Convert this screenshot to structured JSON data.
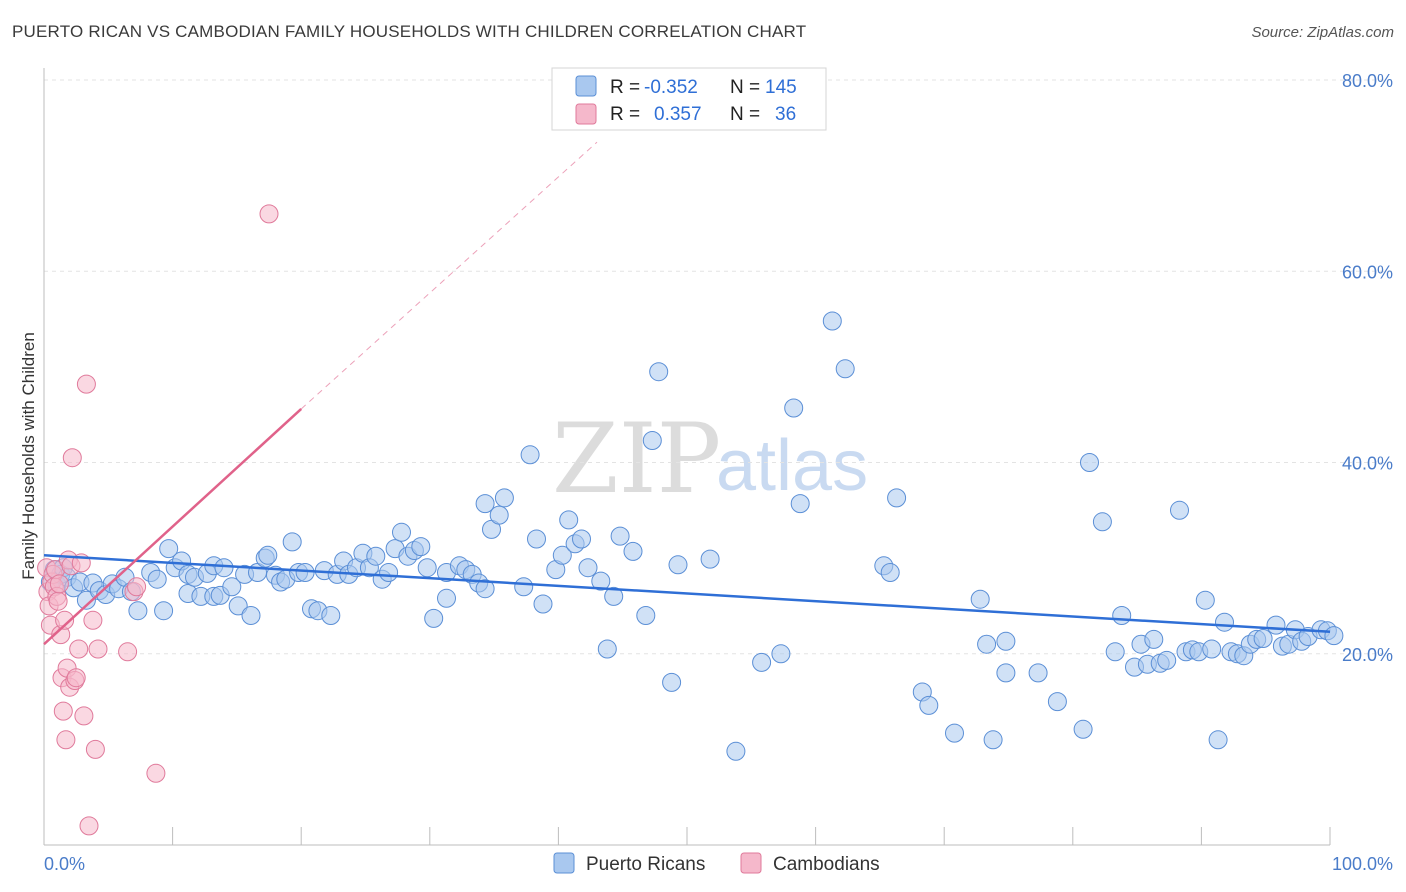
{
  "title": "PUERTO RICAN VS CAMBODIAN FAMILY HOUSEHOLDS WITH CHILDREN CORRELATION CHART",
  "source": "Source: ZipAtlas.com",
  "watermark": {
    "zip": "ZIP",
    "atlas": "atlas"
  },
  "colors": {
    "blue_fill": "#a9c8ef",
    "blue_stroke": "#5b8fd6",
    "blue_line": "#2f6fd6",
    "pink_fill": "#f5b8cb",
    "pink_stroke": "#e07a9b",
    "pink_line": "#e0628a",
    "tick_text": "#4a7cc9",
    "grid": "#e3e3e3"
  },
  "legend": {
    "rows": [
      {
        "r_label": "R =",
        "r_value": "-0.352",
        "n_label": "N =",
        "n_value": "145"
      },
      {
        "r_label": "R =",
        "r_value": "0.357",
        "n_label": "N =",
        "n_value": "36"
      }
    ]
  },
  "bottom_legend": [
    "Puerto Ricans",
    "Cambodians"
  ],
  "chart_data": {
    "type": "scatter",
    "title": "PUERTO RICAN VS CAMBODIAN FAMILY HOUSEHOLDS WITH CHILDREN CORRELATION CHART",
    "xlabel": "",
    "ylabel": "Family Households with Children",
    "xlim": [
      0,
      100
    ],
    "ylim": [
      0,
      80
    ],
    "x_tick_labels": [
      "0.0%",
      "100.0%"
    ],
    "y_ticks": [
      20,
      40,
      60,
      80
    ],
    "y_tick_labels": [
      "20.0%",
      "40.0%",
      "60.0%",
      "80.0%"
    ],
    "grid": "horizontal dashed",
    "legend_placement": "top-center",
    "series": [
      {
        "name": "Puerto Ricans",
        "color": "#a9c8ef",
        "trend": {
          "x": [
            0,
            100
          ],
          "y": [
            30.3,
            22.3
          ]
        },
        "points": [
          [
            0.5,
            27.5
          ],
          [
            0.8,
            28.8
          ],
          [
            1.0,
            27.2
          ],
          [
            1.3,
            28.3
          ],
          [
            1.5,
            29.0
          ],
          [
            1.8,
            28.0
          ],
          [
            2.3,
            26.9
          ],
          [
            2.8,
            27.5
          ],
          [
            3.3,
            25.6
          ],
          [
            3.8,
            27.4
          ],
          [
            4.3,
            26.6
          ],
          [
            4.8,
            26.2
          ],
          [
            5.3,
            27.3
          ],
          [
            5.8,
            26.8
          ],
          [
            6.3,
            28.0
          ],
          [
            6.8,
            26.5
          ],
          [
            7.3,
            24.5
          ],
          [
            8.3,
            28.5
          ],
          [
            8.8,
            27.8
          ],
          [
            9.3,
            24.5
          ],
          [
            9.7,
            31.0
          ],
          [
            10.2,
            29.0
          ],
          [
            10.7,
            29.7
          ],
          [
            11.2,
            28.3
          ],
          [
            11.2,
            26.3
          ],
          [
            11.7,
            28.0
          ],
          [
            12.2,
            26.0
          ],
          [
            12.7,
            28.4
          ],
          [
            13.2,
            26.0
          ],
          [
            13.2,
            29.2
          ],
          [
            13.7,
            26.1
          ],
          [
            14.0,
            29.0
          ],
          [
            14.6,
            27.0
          ],
          [
            15.1,
            25.0
          ],
          [
            15.6,
            28.3
          ],
          [
            16.1,
            24.0
          ],
          [
            16.6,
            28.5
          ],
          [
            17.2,
            30.0
          ],
          [
            17.4,
            30.3
          ],
          [
            18.0,
            28.2
          ],
          [
            18.4,
            27.5
          ],
          [
            18.8,
            27.8
          ],
          [
            19.3,
            31.7
          ],
          [
            19.8,
            28.5
          ],
          [
            20.3,
            28.5
          ],
          [
            20.8,
            24.7
          ],
          [
            21.3,
            24.5
          ],
          [
            21.8,
            28.7
          ],
          [
            22.3,
            24.0
          ],
          [
            22.8,
            28.3
          ],
          [
            23.3,
            29.7
          ],
          [
            23.7,
            28.3
          ],
          [
            24.3,
            29.0
          ],
          [
            24.8,
            30.5
          ],
          [
            25.3,
            29.0
          ],
          [
            25.8,
            30.2
          ],
          [
            26.3,
            27.8
          ],
          [
            26.8,
            28.5
          ],
          [
            27.3,
            31.0
          ],
          [
            27.8,
            32.7
          ],
          [
            28.3,
            30.2
          ],
          [
            28.8,
            30.8
          ],
          [
            29.3,
            31.2
          ],
          [
            29.8,
            29.0
          ],
          [
            30.3,
            23.7
          ],
          [
            31.3,
            28.5
          ],
          [
            31.3,
            25.8
          ],
          [
            32.3,
            29.2
          ],
          [
            32.8,
            28.8
          ],
          [
            33.3,
            28.3
          ],
          [
            33.8,
            27.4
          ],
          [
            34.3,
            26.8
          ],
          [
            34.3,
            35.7
          ],
          [
            34.8,
            33.0
          ],
          [
            35.4,
            34.5
          ],
          [
            35.8,
            36.3
          ],
          [
            37.3,
            27.0
          ],
          [
            37.8,
            40.8
          ],
          [
            38.3,
            32.0
          ],
          [
            38.8,
            25.2
          ],
          [
            39.8,
            28.8
          ],
          [
            40.3,
            30.3
          ],
          [
            40.8,
            34.0
          ],
          [
            41.3,
            31.5
          ],
          [
            41.8,
            32.0
          ],
          [
            42.3,
            29.0
          ],
          [
            43.3,
            27.6
          ],
          [
            43.8,
            20.5
          ],
          [
            44.3,
            26.0
          ],
          [
            44.8,
            32.3
          ],
          [
            45.8,
            30.7
          ],
          [
            46.8,
            24.0
          ],
          [
            47.3,
            42.3
          ],
          [
            47.8,
            49.5
          ],
          [
            48.8,
            17.0
          ],
          [
            49.3,
            29.3
          ],
          [
            51.8,
            29.9
          ],
          [
            53.8,
            9.8
          ],
          [
            55.8,
            19.1
          ],
          [
            57.3,
            20.0
          ],
          [
            58.3,
            45.7
          ],
          [
            58.8,
            35.7
          ],
          [
            61.3,
            54.8
          ],
          [
            62.3,
            49.8
          ],
          [
            65.3,
            29.2
          ],
          [
            65.8,
            28.5
          ],
          [
            66.3,
            36.3
          ],
          [
            68.3,
            16.0
          ],
          [
            68.8,
            14.6
          ],
          [
            70.8,
            11.7
          ],
          [
            72.8,
            25.7
          ],
          [
            73.3,
            21.0
          ],
          [
            73.8,
            11.0
          ],
          [
            74.8,
            18.0
          ],
          [
            74.8,
            21.3
          ],
          [
            77.3,
            18.0
          ],
          [
            78.8,
            15.0
          ],
          [
            80.8,
            12.1
          ],
          [
            81.3,
            40.0
          ],
          [
            82.3,
            33.8
          ],
          [
            83.3,
            20.2
          ],
          [
            83.8,
            24.0
          ],
          [
            84.8,
            18.6
          ],
          [
            85.3,
            21.0
          ],
          [
            85.8,
            18.9
          ],
          [
            86.3,
            21.5
          ],
          [
            86.8,
            19.0
          ],
          [
            87.3,
            19.3
          ],
          [
            88.3,
            35.0
          ],
          [
            88.8,
            20.2
          ],
          [
            89.3,
            20.4
          ],
          [
            89.8,
            20.2
          ],
          [
            90.3,
            25.6
          ],
          [
            90.8,
            20.5
          ],
          [
            91.3,
            11.0
          ],
          [
            91.8,
            23.3
          ],
          [
            92.3,
            20.2
          ],
          [
            92.8,
            20.0
          ],
          [
            93.3,
            19.8
          ],
          [
            93.8,
            21.0
          ],
          [
            94.3,
            21.5
          ],
          [
            94.8,
            21.6
          ],
          [
            95.8,
            23.0
          ],
          [
            96.3,
            20.8
          ],
          [
            96.8,
            21.0
          ],
          [
            97.3,
            22.5
          ],
          [
            97.8,
            21.3
          ],
          [
            98.3,
            21.8
          ],
          [
            99.3,
            22.5
          ],
          [
            99.8,
            22.4
          ],
          [
            100.3,
            21.9
          ]
        ]
      },
      {
        "name": "Cambodians",
        "color": "#f5b8cb",
        "trend": {
          "x": [
            0,
            20
          ],
          "y": [
            21.0,
            45.6
          ],
          "dashed_to": {
            "x": 43,
            "y": 73.5
          }
        },
        "points": [
          [
            0.2,
            29.0
          ],
          [
            0.3,
            26.5
          ],
          [
            0.4,
            25.0
          ],
          [
            0.5,
            23.0
          ],
          [
            0.6,
            27.5
          ],
          [
            0.7,
            28.3
          ],
          [
            0.8,
            27.0
          ],
          [
            0.9,
            28.8
          ],
          [
            1.0,
            26.0
          ],
          [
            1.1,
            25.5
          ],
          [
            1.2,
            27.3
          ],
          [
            1.3,
            22.0
          ],
          [
            1.4,
            17.5
          ],
          [
            1.5,
            14.0
          ],
          [
            1.6,
            23.5
          ],
          [
            1.7,
            11.0
          ],
          [
            1.8,
            18.5
          ],
          [
            1.9,
            29.8
          ],
          [
            2.0,
            16.5
          ],
          [
            2.1,
            29.2
          ],
          [
            2.2,
            40.5
          ],
          [
            2.4,
            17.2
          ],
          [
            2.5,
            17.5
          ],
          [
            2.7,
            20.5
          ],
          [
            2.9,
            29.5
          ],
          [
            3.1,
            13.5
          ],
          [
            3.3,
            48.2
          ],
          [
            3.5,
            2.0
          ],
          [
            3.8,
            23.5
          ],
          [
            4.0,
            10.0
          ],
          [
            4.2,
            20.5
          ],
          [
            6.5,
            20.2
          ],
          [
            7.0,
            26.5
          ],
          [
            7.2,
            27.0
          ],
          [
            8.7,
            7.5
          ],
          [
            17.5,
            66.0
          ]
        ]
      }
    ]
  }
}
